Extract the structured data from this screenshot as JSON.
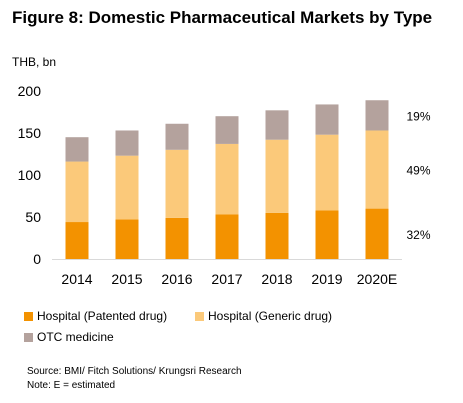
{
  "title": "Figure 8: Domestic Pharmaceutical Markets by Type",
  "unit_label": "THB, bn",
  "colors": {
    "patented": "#f39200",
    "generic": "#fbc97a",
    "otc": "#b4a29d",
    "axis": "#d9d9d9"
  },
  "chart_data": {
    "type": "bar",
    "stacked": true,
    "categories": [
      "2014",
      "2015",
      "2016",
      "2017",
      "2018",
      "2019",
      "2020E"
    ],
    "series": [
      {
        "name": "Hospital (Patented drug)",
        "values": [
          44,
          47,
          49,
          53,
          55,
          58,
          60
        ]
      },
      {
        "name": "Hospital (Generic drug)",
        "values": [
          72,
          76,
          81,
          84,
          87,
          90,
          93
        ]
      },
      {
        "name": "OTC medicine",
        "values": [
          29,
          30,
          31,
          33,
          35,
          36,
          36
        ]
      }
    ],
    "ylim": [
      0,
      200
    ],
    "yticks": [
      0,
      50,
      100,
      150,
      200
    ],
    "grid": false,
    "legend": "bottom",
    "annotations": [
      "19%",
      "49%",
      "32%"
    ]
  },
  "footer": {
    "source": "Source: BMI/ Fitch Solutions/ Krungsri Research",
    "note": "Note: E = estimated"
  }
}
